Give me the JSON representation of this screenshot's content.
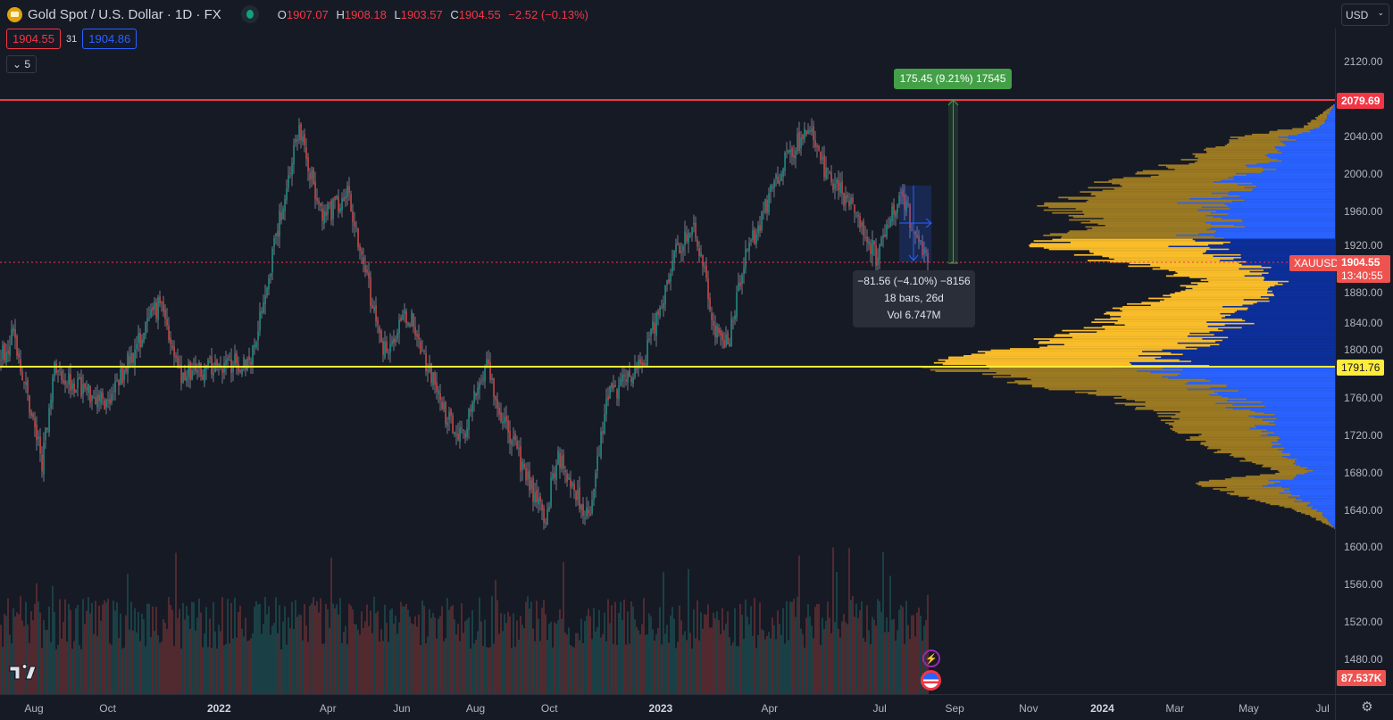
{
  "header": {
    "title": "Gold Spot / U.S. Dollar · 1D · FX",
    "open_label": "O",
    "open": "1907.07",
    "high_label": "H",
    "high": "1908.18",
    "low_label": "L",
    "low": "1903.57",
    "close_label": "C",
    "close": "1904.55",
    "change": "−2.52 (−0.13%)",
    "sell_price": "1904.55",
    "spread": "31",
    "buy_price": "1904.86",
    "indicators_collapsed": "5",
    "currency": "USD"
  },
  "price_axis": {
    "ticks": [
      "2120.00",
      "2040.00",
      "2000.00",
      "1960.00",
      "1920.00",
      "1880.00",
      "1840.00",
      "1800.00",
      "1760.00",
      "1720.00",
      "1680.00",
      "1640.00",
      "1600.00",
      "1560.00",
      "1520.00",
      "1480.00"
    ],
    "resistance_tag": "2079.69",
    "support_tag": "1791.76",
    "symbol_tag": "XAUUSD",
    "last_price_tag": "1904.55",
    "countdown": "13:40:55",
    "volume_tag": "87.537K"
  },
  "time_axis": {
    "ticks": [
      {
        "label": "Aug",
        "date": "2021-08-01",
        "year": false
      },
      {
        "label": "Oct",
        "date": "2021-10-01",
        "year": false
      },
      {
        "label": "2022",
        "date": "2022-01-01",
        "year": true
      },
      {
        "label": "Apr",
        "date": "2022-04-01",
        "year": false
      },
      {
        "label": "Jun",
        "date": "2022-06-01",
        "year": false
      },
      {
        "label": "Aug",
        "date": "2022-08-01",
        "year": false
      },
      {
        "label": "Oct",
        "date": "2022-10-01",
        "year": false
      },
      {
        "label": "2023",
        "date": "2023-01-01",
        "year": true
      },
      {
        "label": "Apr",
        "date": "2023-04-01",
        "year": false
      },
      {
        "label": "Jul",
        "date": "2023-07-01",
        "year": false
      },
      {
        "label": "Sep",
        "date": "2023-09-01",
        "year": false
      },
      {
        "label": "Nov",
        "date": "2023-11-01",
        "year": false
      },
      {
        "label": "2024",
        "date": "2024-01-01",
        "year": true
      },
      {
        "label": "Mar",
        "date": "2024-03-01",
        "year": false
      },
      {
        "label": "May",
        "date": "2024-05-01",
        "year": false
      },
      {
        "label": "Jul",
        "date": "2024-07-01",
        "year": false
      }
    ]
  },
  "measure": {
    "range_label": "175.45 (9.21%) 17545",
    "tooltip_line1": "−81.56 (−4.10%) −8156",
    "tooltip_line2": "18 bars, 26d",
    "tooltip_line3": "Vol 6.747M"
  },
  "colors": {
    "up": "#26a69a",
    "down": "#ef5350",
    "resistance": "#f23645",
    "support": "#ffeb3b",
    "profile_value": "#f9bd2a",
    "profile_outside": "#9c7a23",
    "profile_blue": "#2962ff",
    "profile_blue_va": "#0c2f9a",
    "bg": "#161a25"
  },
  "chart_data": {
    "type": "candlestick",
    "symbol": "XAUUSD",
    "interval": "1D",
    "ylim": [
      1460,
      2160
    ],
    "xlim": [
      "2021-07-04",
      "2024-07-20"
    ],
    "horizontal_lines": [
      {
        "price": 2079.69,
        "color": "red"
      },
      {
        "price": 1791.76,
        "color": "yellow"
      }
    ],
    "last_close": 1904.55,
    "approx_close_path": [
      [
        "2021-07-04",
        1800
      ],
      [
        "2021-07-15",
        1830
      ],
      [
        "2021-08-08",
        1690
      ],
      [
        "2021-08-17",
        1790
      ],
      [
        "2021-09-30",
        1755
      ],
      [
        "2021-11-14",
        1865
      ],
      [
        "2021-11-29",
        1785
      ],
      [
        "2022-01-27",
        1800
      ],
      [
        "2022-03-08",
        2050
      ],
      [
        "2022-03-27",
        1950
      ],
      [
        "2022-04-18",
        1980
      ],
      [
        "2022-05-16",
        1810
      ],
      [
        "2022-06-07",
        1850
      ],
      [
        "2022-07-07",
        1740
      ],
      [
        "2022-07-22",
        1720
      ],
      [
        "2022-08-10",
        1800
      ],
      [
        "2022-08-21",
        1745
      ],
      [
        "2022-09-27",
        1630
      ],
      [
        "2022-10-08",
        1700
      ],
      [
        "2022-11-03",
        1630
      ],
      [
        "2022-11-18",
        1760
      ],
      [
        "2022-12-17",
        1795
      ],
      [
        "2023-01-15",
        1920
      ],
      [
        "2023-01-30",
        1940
      ],
      [
        "2023-02-14",
        1835
      ],
      [
        "2023-02-25",
        1815
      ],
      [
        "2023-03-12",
        1910
      ],
      [
        "2023-04-10",
        2005
      ],
      [
        "2023-05-03",
        2050
      ],
      [
        "2023-05-14",
        2010
      ],
      [
        "2023-06-13",
        1955
      ],
      [
        "2023-06-28",
        1910
      ],
      [
        "2023-07-17",
        1978
      ],
      [
        "2023-08-11",
        1904.55
      ]
    ],
    "volume_profile": {
      "value_area": [
        1791.76,
        1930
      ],
      "levels": [
        [
          2075,
          0.0
        ],
        [
          2050,
          0.08
        ],
        [
          2040,
          0.25
        ],
        [
          2020,
          0.35
        ],
        [
          2005,
          0.45
        ],
        [
          1990,
          0.6
        ],
        [
          1975,
          0.7
        ],
        [
          1962,
          0.72
        ],
        [
          1945,
          0.6
        ],
        [
          1930,
          0.78
        ],
        [
          1915,
          0.7
        ],
        [
          1900,
          0.5
        ],
        [
          1885,
          0.35
        ],
        [
          1870,
          0.42
        ],
        [
          1855,
          0.55
        ],
        [
          1840,
          0.6
        ],
        [
          1820,
          0.75
        ],
        [
          1800,
          0.98
        ],
        [
          1792,
          1.0
        ],
        [
          1780,
          0.88
        ],
        [
          1765,
          0.65
        ],
        [
          1745,
          0.45
        ],
        [
          1725,
          0.4
        ],
        [
          1710,
          0.35
        ],
        [
          1695,
          0.25
        ],
        [
          1680,
          0.15
        ],
        [
          1670,
          0.35
        ],
        [
          1655,
          0.25
        ],
        [
          1640,
          0.1
        ],
        [
          1620,
          0.0
        ]
      ]
    }
  }
}
